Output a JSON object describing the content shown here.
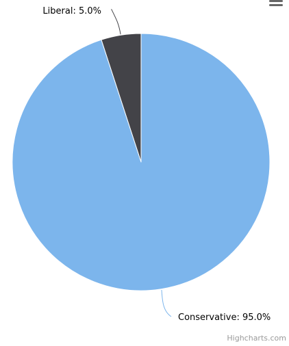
{
  "credits": "Highcharts.com",
  "menu_icon": "hamburger-menu-icon",
  "colors": {
    "slice_colors": [
      "#434348",
      "#7cb5ec"
    ],
    "slice_border": "#ffffff",
    "credits": "#999999"
  },
  "chart_data": {
    "type": "pie",
    "series": [
      {
        "data": [
          {
            "name": "Liberal",
            "y": 5.0,
            "label": "Liberal: 5.0%",
            "color": "#434348"
          },
          {
            "name": "Conservative",
            "y": 95.0,
            "label": "Conservative: 95.0%",
            "color": "#7cb5ec"
          }
        ]
      }
    ],
    "start_angle": 0,
    "legend": "none",
    "data_labels": "outside-with-connectors"
  }
}
